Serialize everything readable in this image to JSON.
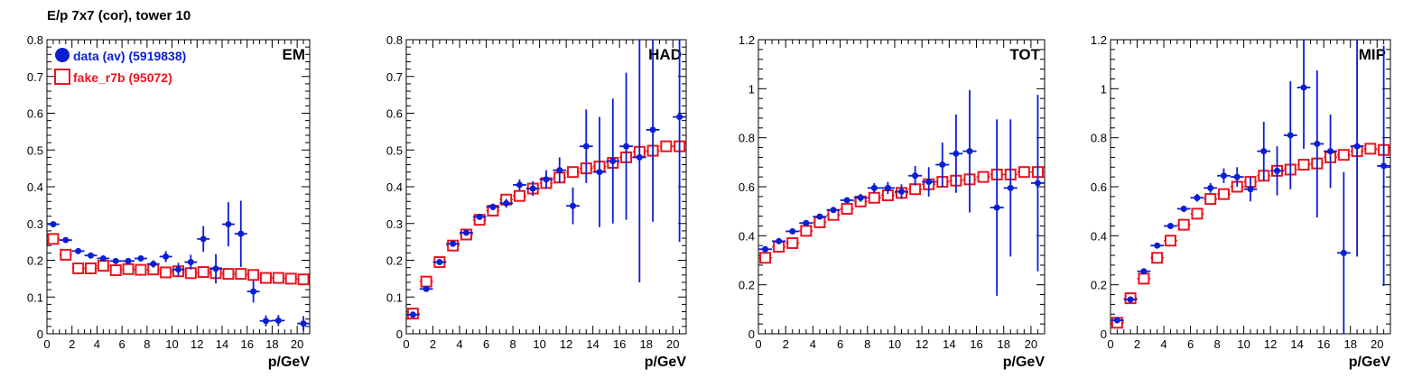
{
  "title": "E/p 7x7 (cor), tower 10",
  "colors": {
    "data": "#0a1ed2",
    "fake": "#e8141e",
    "axis": "#000000"
  },
  "legend": [
    {
      "label": "data (av) (5919838)",
      "color": "#0a1ed2",
      "marker": "filled-circle"
    },
    {
      "label": "fake_r7b (95072)",
      "color": "#e8141e",
      "marker": "open-square"
    }
  ],
  "chart_data": [
    {
      "type": "scatter",
      "panel_label": "EM",
      "xlabel": "p/GeV",
      "xlim": [
        0,
        21
      ],
      "ylim": [
        0,
        0.8
      ],
      "xticks": [
        "0",
        "2",
        "4",
        "6",
        "8",
        "10",
        "12",
        "14",
        "16",
        "18",
        "20"
      ],
      "yticks": [
        "0",
        "0.1",
        "0.2",
        "0.3",
        "0.4",
        "0.5",
        "0.6",
        "0.7",
        "0.8"
      ],
      "x": [
        0.5,
        1.5,
        2.5,
        3.5,
        4.5,
        5.5,
        6.5,
        7.5,
        8.5,
        9.5,
        10.5,
        11.5,
        12.5,
        13.5,
        14.5,
        15.5,
        16.5,
        17.5,
        18.5,
        19.5,
        20.5
      ],
      "series": [
        {
          "name": "data (av) (5919838)",
          "values": [
            0.298,
            0.255,
            0.225,
            0.213,
            0.205,
            0.198,
            0.198,
            0.205,
            0.19,
            0.21,
            0.175,
            0.195,
            0.258,
            0.177,
            0.298,
            0.272,
            0.115,
            0.035,
            0.036,
            null,
            0.028
          ],
          "errors": [
            0.004,
            0.004,
            0.004,
            0.004,
            0.005,
            0.006,
            0.006,
            0.008,
            0.01,
            0.015,
            0.018,
            0.02,
            0.035,
            0.04,
            0.06,
            0.09,
            0.03,
            0.015,
            0.015,
            null,
            0.02
          ]
        },
        {
          "name": "fake_r7b (95072)",
          "values": [
            0.258,
            0.215,
            0.178,
            0.178,
            0.185,
            0.173,
            0.176,
            0.174,
            0.175,
            0.167,
            0.17,
            0.165,
            0.168,
            0.165,
            0.163,
            0.163,
            0.16,
            0.152,
            0.152,
            0.15,
            0.148
          ],
          "errors": [
            0.01,
            0.01,
            0.01,
            0.01,
            0.01,
            0.01,
            0.01,
            0.01,
            0.01,
            0.01,
            0.01,
            0.01,
            0.01,
            0.01,
            0.01,
            0.01,
            0.01,
            0.01,
            0.01,
            0.01,
            0.01
          ]
        }
      ]
    },
    {
      "type": "scatter",
      "panel_label": "HAD",
      "xlabel": "p/GeV",
      "xlim": [
        0,
        21
      ],
      "ylim": [
        0,
        0.8
      ],
      "xticks": [
        "0",
        "2",
        "4",
        "6",
        "8",
        "10",
        "12",
        "14",
        "16",
        "18",
        "20"
      ],
      "yticks": [
        "0",
        "0.1",
        "0.2",
        "0.3",
        "0.4",
        "0.5",
        "0.6",
        "0.7",
        "0.8"
      ],
      "x": [
        0.5,
        1.5,
        2.5,
        3.5,
        4.5,
        5.5,
        6.5,
        7.5,
        8.5,
        9.5,
        10.5,
        11.5,
        12.5,
        13.5,
        14.5,
        15.5,
        16.5,
        17.5,
        18.5,
        19.5,
        20.5
      ],
      "series": [
        {
          "name": "data (av) (5919838)",
          "values": [
            0.052,
            0.122,
            0.195,
            0.245,
            0.275,
            0.318,
            0.345,
            0.355,
            0.405,
            0.395,
            0.42,
            0.445,
            0.348,
            0.51,
            0.44,
            0.47,
            0.51,
            0.48,
            0.555,
            null,
            0.59
          ],
          "errors": [
            0.005,
            0.005,
            0.006,
            0.006,
            0.007,
            0.008,
            0.009,
            0.012,
            0.015,
            0.02,
            0.025,
            0.035,
            0.05,
            0.1,
            0.15,
            0.17,
            0.2,
            0.34,
            0.25,
            null,
            0.34
          ]
        },
        {
          "name": "fake_r7b (95072)",
          "values": [
            0.055,
            0.142,
            0.195,
            0.24,
            0.27,
            0.31,
            0.335,
            0.365,
            0.375,
            0.395,
            0.41,
            0.425,
            0.44,
            0.45,
            0.455,
            0.465,
            0.48,
            0.495,
            0.498,
            0.51,
            0.51
          ],
          "errors": [
            0.01,
            0.01,
            0.01,
            0.01,
            0.01,
            0.01,
            0.01,
            0.01,
            0.01,
            0.01,
            0.01,
            0.01,
            0.01,
            0.01,
            0.01,
            0.01,
            0.01,
            0.01,
            0.01,
            0.01,
            0.01
          ]
        }
      ]
    },
    {
      "type": "scatter",
      "panel_label": "TOT",
      "xlabel": "p/GeV",
      "xlim": [
        0,
        21
      ],
      "ylim": [
        0,
        1.2
      ],
      "xticks": [
        "0",
        "2",
        "4",
        "6",
        "8",
        "10",
        "12",
        "14",
        "16",
        "18",
        "20"
      ],
      "yticks": [
        "0",
        "0.2",
        "0.4",
        "0.6",
        "0.8",
        "1",
        "1.2"
      ],
      "x": [
        0.5,
        1.5,
        2.5,
        3.5,
        4.5,
        5.5,
        6.5,
        7.5,
        8.5,
        9.5,
        10.5,
        11.5,
        12.5,
        13.5,
        14.5,
        15.5,
        16.5,
        17.5,
        18.5,
        19.5,
        20.5
      ],
      "series": [
        {
          "name": "data (av) (5919838)",
          "values": [
            0.345,
            0.378,
            0.418,
            0.452,
            0.478,
            0.505,
            0.545,
            0.555,
            0.595,
            0.595,
            0.58,
            0.645,
            0.62,
            0.69,
            0.735,
            0.745,
            null,
            0.515,
            0.595,
            null,
            0.615
          ],
          "errors": [
            0.004,
            0.005,
            0.006,
            0.007,
            0.008,
            0.01,
            0.012,
            0.016,
            0.02,
            0.025,
            0.03,
            0.04,
            0.06,
            0.09,
            0.16,
            0.25,
            null,
            0.36,
            0.28,
            null,
            0.36
          ]
        },
        {
          "name": "fake_r7b (95072)",
          "values": [
            0.31,
            0.355,
            0.37,
            0.42,
            0.455,
            0.485,
            0.51,
            0.54,
            0.555,
            0.565,
            0.575,
            0.59,
            0.61,
            0.62,
            0.625,
            0.63,
            0.64,
            0.65,
            0.65,
            0.66,
            0.66
          ],
          "errors": [
            0.012,
            0.012,
            0.012,
            0.012,
            0.012,
            0.012,
            0.012,
            0.012,
            0.012,
            0.012,
            0.012,
            0.012,
            0.012,
            0.012,
            0.012,
            0.012,
            0.012,
            0.012,
            0.012,
            0.012,
            0.012
          ]
        }
      ]
    },
    {
      "type": "scatter",
      "panel_label": "MIP",
      "xlabel": "p/GeV",
      "xlim": [
        0,
        21
      ],
      "ylim": [
        0,
        1.2
      ],
      "xticks": [
        "0",
        "2",
        "4",
        "6",
        "8",
        "10",
        "12",
        "14",
        "16",
        "18",
        "20"
      ],
      "yticks": [
        "0",
        "0.2",
        "0.4",
        "0.6",
        "0.8",
        "1",
        "1.2"
      ],
      "x": [
        0.5,
        1.5,
        2.5,
        3.5,
        4.5,
        5.5,
        6.5,
        7.5,
        8.5,
        9.5,
        10.5,
        11.5,
        12.5,
        13.5,
        14.5,
        15.5,
        16.5,
        17.5,
        18.5,
        19.5,
        20.5
      ],
      "series": [
        {
          "name": "data (av) (5919838)",
          "values": [
            0.055,
            0.14,
            0.255,
            0.36,
            0.44,
            0.51,
            0.555,
            0.595,
            0.645,
            0.64,
            0.59,
            0.745,
            0.665,
            0.81,
            1.005,
            0.775,
            0.745,
            0.33,
            0.765,
            null,
            0.685
          ],
          "errors": [
            0.005,
            0.006,
            0.007,
            0.009,
            0.011,
            0.013,
            0.016,
            0.02,
            0.03,
            0.04,
            0.05,
            0.12,
            0.1,
            0.22,
            0.25,
            0.3,
            0.15,
            0.33,
            0.45,
            null,
            0.49
          ]
        },
        {
          "name": "fake_r7b (95072)",
          "values": [
            0.045,
            0.145,
            0.225,
            0.31,
            0.38,
            0.445,
            0.49,
            0.55,
            0.57,
            0.6,
            0.62,
            0.645,
            0.665,
            0.67,
            0.69,
            0.695,
            0.72,
            0.73,
            0.745,
            0.755,
            0.75
          ],
          "errors": [
            0.015,
            0.015,
            0.015,
            0.015,
            0.015,
            0.015,
            0.015,
            0.015,
            0.015,
            0.015,
            0.015,
            0.015,
            0.015,
            0.015,
            0.015,
            0.015,
            0.015,
            0.015,
            0.015,
            0.015,
            0.015
          ]
        }
      ]
    }
  ]
}
